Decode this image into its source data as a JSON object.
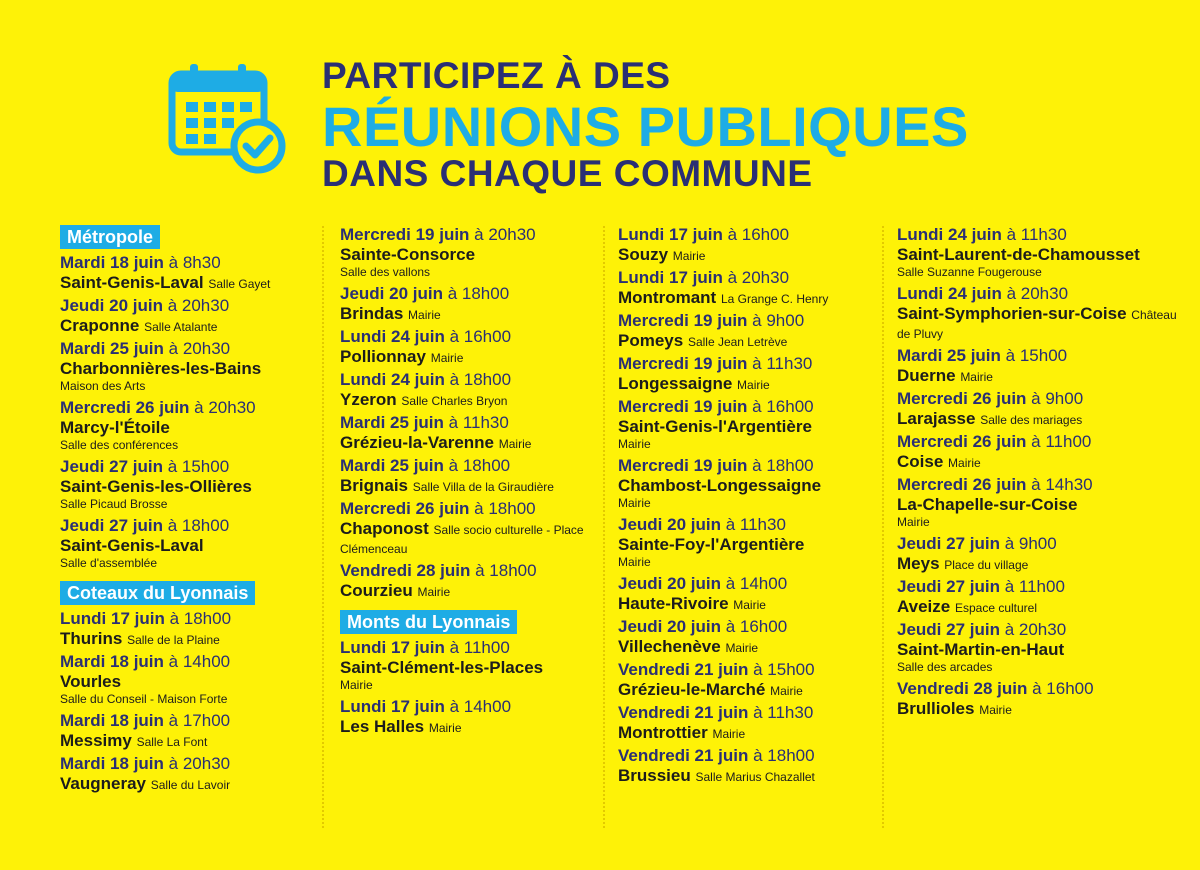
{
  "header": {
    "title_line1": "PARTICIPEZ À DES",
    "title_line2": "RÉUNIONS PUBLIQUES",
    "title_line3": "DANS CHAQUE COMMUNE",
    "icon": "calendar-check-icon",
    "colors": {
      "background": "#FEF207",
      "navy": "#2a2f74",
      "cyan": "#1eace5"
    }
  },
  "columns": [
    {
      "sections": [
        {
          "label": "Métropole",
          "events": [
            {
              "day": "Mardi 18 juin",
              "time": "à 8h30",
              "place": "Saint-Genis-Laval",
              "location": "Salle Gayet",
              "loc_break": false
            },
            {
              "day": "Jeudi 20 juin",
              "time": "à 20h30",
              "place": "Craponne",
              "location": "Salle Atalante",
              "loc_break": false
            },
            {
              "day": "Mardi 25 juin",
              "time": "à 20h30",
              "place": "Charbonnières-les-Bains",
              "location": "Maison des Arts",
              "loc_break": true
            },
            {
              "day": "Mercredi 26 juin",
              "time": "à 20h30",
              "place": "Marcy-l'Étoile",
              "location": "Salle des conférences",
              "loc_break": true
            },
            {
              "day": "Jeudi 27 juin",
              "time": "à 15h00",
              "place": "Saint-Genis-les-Ollières",
              "location": "Salle Picaud Brosse",
              "loc_break": true
            },
            {
              "day": "Jeudi 27 juin",
              "time": "à 18h00",
              "place": "Saint-Genis-Laval",
              "location": "Salle d'assemblée",
              "loc_break": true
            }
          ]
        },
        {
          "label": "Coteaux du Lyonnais",
          "events": [
            {
              "day": "Lundi 17 juin",
              "time": "à 18h00",
              "place": "Thurins",
              "location": "Salle de la Plaine",
              "loc_break": false
            },
            {
              "day": "Mardi 18 juin",
              "time": "à 14h00",
              "place": "Vourles",
              "location": "Salle du Conseil - Maison Forte",
              "loc_break": true
            },
            {
              "day": "Mardi 18 juin",
              "time": "à 17h00",
              "place": "Messimy",
              "location": "Salle La Font",
              "loc_break": false
            },
            {
              "day": "Mardi 18 juin",
              "time": "à 20h30",
              "place": "Vaugneray",
              "location": "Salle du Lavoir",
              "loc_break": false
            }
          ]
        }
      ]
    },
    {
      "sections": [
        {
          "label": "",
          "events": [
            {
              "day": "Mercredi 19 juin",
              "time": "à 20h30",
              "place": "Sainte-Consorce",
              "location": "Salle des vallons",
              "loc_break": true
            },
            {
              "day": "Jeudi 20 juin",
              "time": "à 18h00",
              "place": "Brindas",
              "location": "Mairie",
              "loc_break": false
            },
            {
              "day": "Lundi 24 juin",
              "time": "à 16h00",
              "place": "Pollionnay",
              "location": "Mairie",
              "loc_break": false
            },
            {
              "day": "Lundi 24 juin",
              "time": "à 18h00",
              "place": "Yzeron",
              "location": "Salle Charles Bryon",
              "loc_break": false
            },
            {
              "day": "Mardi 25 juin",
              "time": "à 11h30",
              "place": "Grézieu-la-Varenne",
              "location": "Mairie",
              "loc_break": false
            },
            {
              "day": "Mardi 25 juin",
              "time": "à 18h00",
              "place": "Brignais",
              "location": "Salle Villa de la Giraudière",
              "loc_break": false
            },
            {
              "day": "Mercredi 26 juin",
              "time": "à 18h00",
              "place": "Chaponost",
              "location": "Salle socio culturelle - Place Clémenceau",
              "loc_break": false
            },
            {
              "day": "Vendredi 28 juin",
              "time": "à 18h00",
              "place": "Courzieu",
              "location": "Mairie",
              "loc_break": false
            }
          ]
        },
        {
          "label": "Monts du Lyonnais",
          "events": [
            {
              "day": "Lundi 17 juin",
              "time": "à 11h00",
              "place": "Saint-Clément-les-Places",
              "location": "Mairie",
              "loc_break": true
            },
            {
              "day": "Lundi 17 juin",
              "time": "à 14h00",
              "place": "Les Halles",
              "location": "Mairie",
              "loc_break": false
            }
          ]
        }
      ]
    },
    {
      "sections": [
        {
          "label": "",
          "events": [
            {
              "day": "Lundi 17 juin",
              "time": "à 16h00",
              "place": "Souzy",
              "location": "Mairie",
              "loc_break": false
            },
            {
              "day": "Lundi 17 juin",
              "time": "à 20h30",
              "place": "Montromant",
              "location": "La Grange C. Henry",
              "loc_break": false
            },
            {
              "day": "Mercredi 19 juin",
              "time": "à 9h00",
              "place": "Pomeys",
              "location": "Salle Jean Letrève",
              "loc_break": false
            },
            {
              "day": "Mercredi 19 juin",
              "time": "à 11h30",
              "place": "Longessaigne",
              "location": "Mairie",
              "loc_break": false
            },
            {
              "day": "Mercredi 19 juin",
              "time": "à 16h00",
              "place": "Saint-Genis-l'Argentière",
              "location": "Mairie",
              "loc_break": true
            },
            {
              "day": "Mercredi 19 juin",
              "time": "à 18h00",
              "place": "Chambost-Longessaigne",
              "location": "Mairie",
              "loc_break": true
            },
            {
              "day": "Jeudi 20 juin",
              "time": "à 11h30",
              "place": "Sainte-Foy-l'Argentière",
              "location": "Mairie",
              "loc_break": true
            },
            {
              "day": "Jeudi 20 juin",
              "time": "à 14h00",
              "place": "Haute-Rivoire",
              "location": "Mairie",
              "loc_break": false
            },
            {
              "day": "Jeudi 20 juin",
              "time": "à 16h00",
              "place": "Villechenève",
              "location": "Mairie",
              "loc_break": false
            },
            {
              "day": "Vendredi 21 juin",
              "time": "à 15h00",
              "place": "Grézieu-le-Marché",
              "location": "Mairie",
              "loc_break": false
            },
            {
              "day": "Vendredi 21 juin",
              "time": "à 11h30",
              "place": "Montrottier",
              "location": "Mairie",
              "loc_break": false
            },
            {
              "day": "Vendredi 21 juin",
              "time": "à 18h00",
              "place": "Brussieu",
              "location": "Salle Marius Chazallet",
              "loc_break": false
            }
          ]
        }
      ]
    },
    {
      "sections": [
        {
          "label": "",
          "events": [
            {
              "day": "Lundi 24 juin",
              "time": "à 11h30",
              "place": "Saint-Laurent-de-Chamousset",
              "location": "Salle Suzanne Fougerouse",
              "loc_break": true
            },
            {
              "day": "Lundi 24 juin",
              "time": "à 20h30",
              "place": "Saint-Symphorien-sur-Coise",
              "location": "Château de Pluvy",
              "loc_break": false
            },
            {
              "day": "Mardi 25 juin",
              "time": "à 15h00",
              "place": "Duerne",
              "location": "Mairie",
              "loc_break": false
            },
            {
              "day": "Mercredi 26 juin",
              "time": "à 9h00",
              "place": "Larajasse",
              "location": "Salle des mariages",
              "loc_break": false
            },
            {
              "day": "Mercredi 26 juin",
              "time": "à 11h00",
              "place": "Coise",
              "location": "Mairie",
              "loc_break": false
            },
            {
              "day": "Mercredi 26 juin",
              "time": "à 14h30",
              "place": "La-Chapelle-sur-Coise",
              "location": "Mairie",
              "loc_break": true
            },
            {
              "day": "Jeudi 27 juin",
              "time": "à 9h00",
              "place": "Meys",
              "location": "Place du village",
              "loc_break": false
            },
            {
              "day": "Jeudi 27 juin",
              "time": "à 11h00",
              "place": "Aveize",
              "location": "Espace culturel",
              "loc_break": false
            },
            {
              "day": "Jeudi 27 juin",
              "time": "à 20h30",
              "place": "Saint-Martin-en-Haut",
              "location": "Salle des arcades",
              "loc_break": true
            },
            {
              "day": "Vendredi 28 juin",
              "time": "à 16h00",
              "place": "Brullioles",
              "location": "Mairie",
              "loc_break": false
            }
          ]
        }
      ]
    }
  ]
}
